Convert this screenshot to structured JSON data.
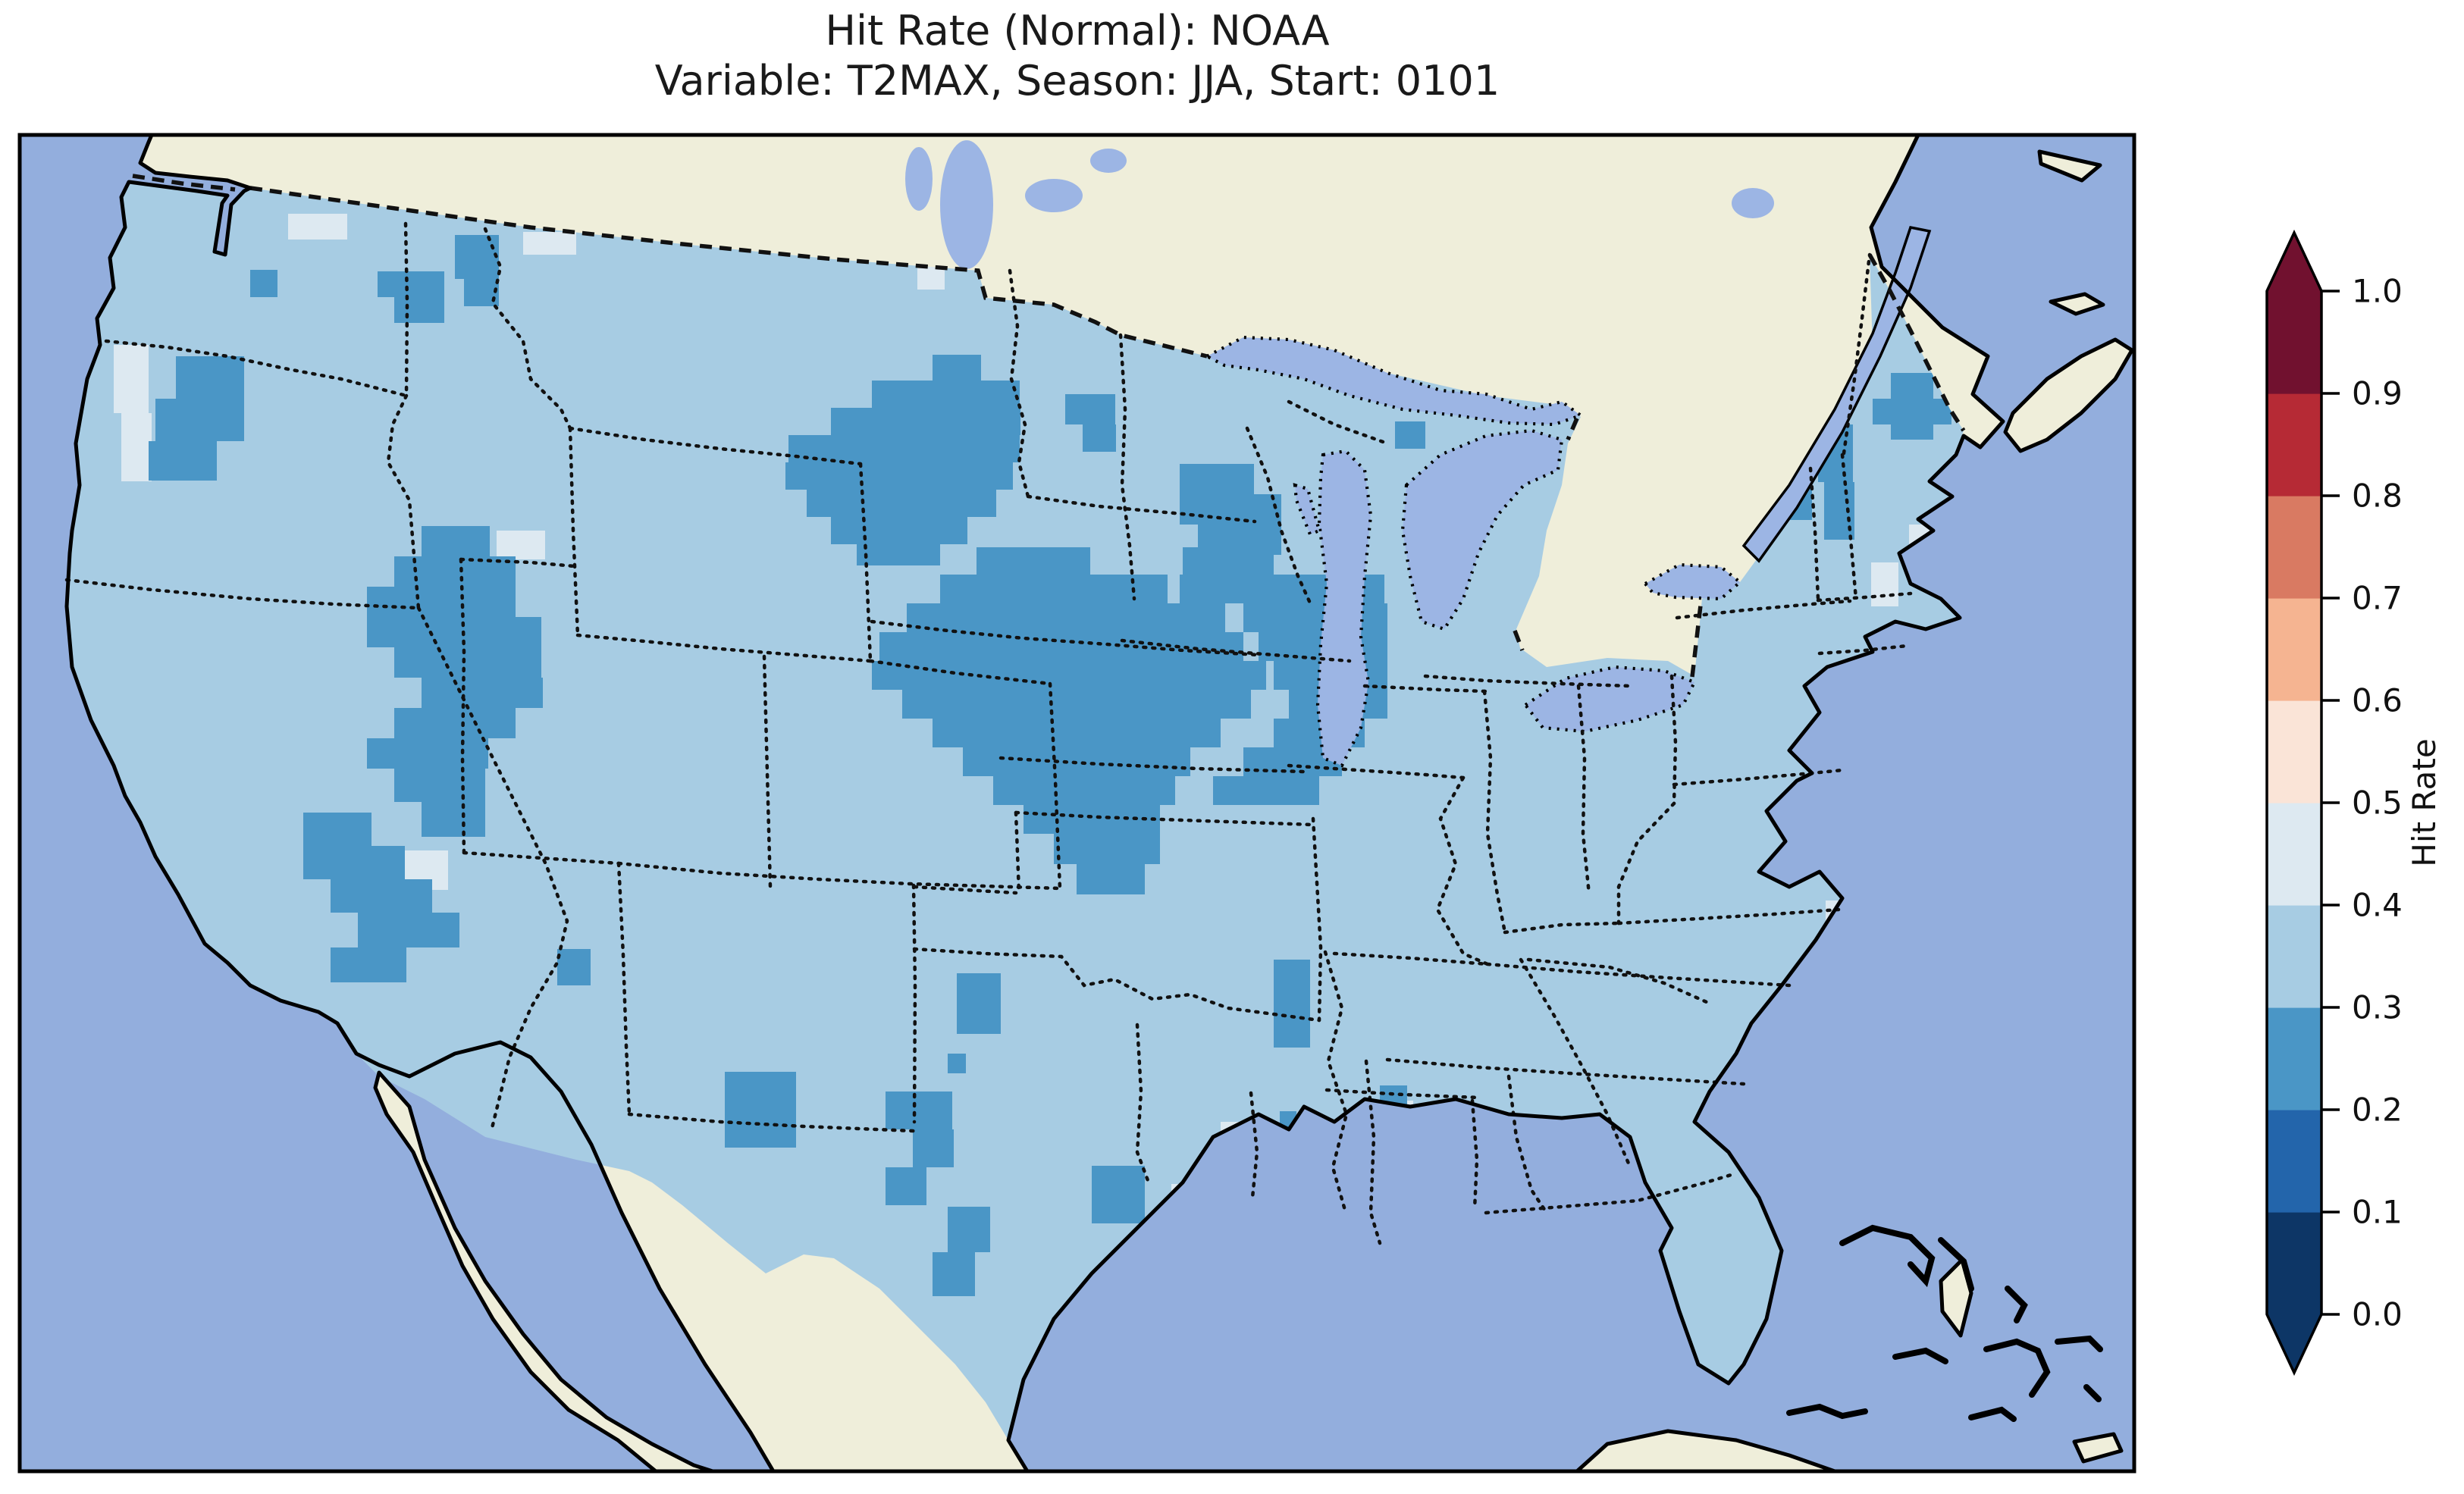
{
  "title": {
    "line1": "Hit Rate (Normal): NOAA",
    "line2": "Variable: T2MAX, Season: JJA, Start: 0101"
  },
  "colorbar": {
    "label": "Hit Rate",
    "tick_labels": [
      "0.0",
      "0.1",
      "0.2",
      "0.3",
      "0.4",
      "0.5",
      "0.6",
      "0.7",
      "0.8",
      "0.9",
      "1.0"
    ],
    "bins_bottom_to_top": [
      {
        "range": "0.0-0.1",
        "color": "#0d3666"
      },
      {
        "range": "0.1-0.2",
        "color": "#2365ab"
      },
      {
        "range": "0.2-0.3",
        "color": "#4a96c6"
      },
      {
        "range": "0.3-0.4",
        "color": "#a7cce3"
      },
      {
        "range": "0.4-0.5",
        "color": "#dde9f1"
      },
      {
        "range": "0.5-0.6",
        "color": "#fae4d7"
      },
      {
        "range": "0.6-0.7",
        "color": "#f5b491"
      },
      {
        "range": "0.7-0.8",
        "color": "#d97a62"
      },
      {
        "range": "0.8-0.9",
        "color": "#b62a35"
      },
      {
        "range": "0.9-1.0",
        "color": "#71112f"
      }
    ],
    "extend_under_color": "#0d3666",
    "extend_over_color": "#71112f",
    "outline_color": "#000000"
  },
  "map": {
    "colors": {
      "ocean": "#93aedd",
      "lakes": "#9cb5e4",
      "land": "#efeeda",
      "base_bin": "#a7cce3",
      "dark_bin": "#4a96c6",
      "pale_bin": "#dde9f1",
      "coastline": "#000000",
      "borders": "#111111",
      "frame": "#000000"
    }
  },
  "chart_data": {
    "type": "heatmap",
    "title": "Hit Rate (Normal): NOAA",
    "variable": "T2MAX",
    "season": "JJA",
    "start": "0101",
    "value_label": "Hit Rate",
    "value_range": [
      0.0,
      1.0
    ],
    "bin_edges": [
      0.0,
      0.1,
      0.2,
      0.3,
      0.4,
      0.5,
      0.6,
      0.7,
      0.8,
      0.9,
      1.0
    ],
    "palette_bottom_to_top": [
      "#0d3666",
      "#2365ab",
      "#4a96c6",
      "#a7cce3",
      "#dde9f1",
      "#fae4d7",
      "#f5b491",
      "#d97a62",
      "#b62a35",
      "#71112f"
    ],
    "base_us_bin": "0.3-0.4",
    "notes": "Most of CONUS falls in 0.3-0.4; clustered cells in 0.2-0.3 (darker blue); scattered coastal cells in 0.4-0.5 (pale).",
    "dark_cells_bin": "0.2-0.3",
    "dark_cells": [
      [
        330,
        356,
        36,
        36
      ],
      [
        498,
        358,
        88,
        34
      ],
      [
        520,
        392,
        66,
        34
      ],
      [
        600,
        310,
        58,
        58
      ],
      [
        612,
        368,
        46,
        36
      ],
      [
        232,
        470,
        90,
        56
      ],
      [
        205,
        526,
        117,
        56
      ],
      [
        196,
        582,
        90,
        52
      ],
      [
        1230,
        468,
        64,
        34
      ],
      [
        1150,
        502,
        195,
        36
      ],
      [
        1096,
        538,
        250,
        36
      ],
      [
        1040,
        574,
        305,
        36
      ],
      [
        1036,
        610,
        300,
        36
      ],
      [
        1064,
        646,
        250,
        36
      ],
      [
        1096,
        682,
        180,
        36
      ],
      [
        1130,
        718,
        110,
        28
      ],
      [
        1405,
        520,
        66,
        40
      ],
      [
        1428,
        560,
        44,
        36
      ],
      [
        1556,
        612,
        98,
        40
      ],
      [
        1556,
        652,
        134,
        40
      ],
      [
        1580,
        692,
        110,
        40
      ],
      [
        1600,
        732,
        70,
        36
      ],
      [
        1840,
        556,
        40,
        36
      ],
      [
        1858,
        700,
        36,
        40
      ],
      [
        1288,
        722,
        150,
        36
      ],
      [
        1560,
        722,
        120,
        36
      ],
      [
        1240,
        758,
        300,
        38
      ],
      [
        1556,
        758,
        270,
        38
      ],
      [
        1196,
        796,
        420,
        38
      ],
      [
        1640,
        796,
        190,
        38
      ],
      [
        1160,
        834,
        480,
        38
      ],
      [
        1660,
        834,
        170,
        38
      ],
      [
        1150,
        872,
        520,
        38
      ],
      [
        1680,
        872,
        150,
        38
      ],
      [
        1190,
        910,
        460,
        38
      ],
      [
        1700,
        910,
        130,
        38
      ],
      [
        1230,
        948,
        380,
        38
      ],
      [
        1680,
        948,
        120,
        38
      ],
      [
        1270,
        986,
        300,
        38
      ],
      [
        1640,
        986,
        130,
        38
      ],
      [
        1310,
        1024,
        240,
        38
      ],
      [
        1600,
        1024,
        140,
        38
      ],
      [
        1350,
        1062,
        180,
        38
      ],
      [
        1390,
        1100,
        140,
        40
      ],
      [
        1420,
        1140,
        90,
        40
      ],
      [
        1262,
        1284,
        58,
        80
      ],
      [
        556,
        694,
        90,
        40
      ],
      [
        520,
        734,
        160,
        40
      ],
      [
        484,
        774,
        196,
        40
      ],
      [
        484,
        814,
        230,
        40
      ],
      [
        520,
        854,
        194,
        40
      ],
      [
        556,
        894,
        160,
        40
      ],
      [
        520,
        934,
        160,
        40
      ],
      [
        484,
        974,
        160,
        40
      ],
      [
        520,
        1014,
        120,
        44
      ],
      [
        556,
        1058,
        84,
        46
      ],
      [
        400,
        1072,
        90,
        44
      ],
      [
        400,
        1116,
        134,
        44
      ],
      [
        436,
        1160,
        134,
        44
      ],
      [
        472,
        1204,
        134,
        46
      ],
      [
        436,
        1250,
        100,
        46
      ],
      [
        735,
        1252,
        44,
        48
      ],
      [
        956,
        1414,
        50,
        50
      ],
      [
        1006,
        1414,
        44,
        100
      ],
      [
        956,
        1464,
        50,
        50
      ],
      [
        1168,
        1440,
        88,
        50
      ],
      [
        1204,
        1490,
        54,
        50
      ],
      [
        1168,
        1540,
        54,
        50
      ],
      [
        1250,
        1592,
        56,
        60
      ],
      [
        1230,
        1652,
        56,
        58
      ],
      [
        1250,
        1390,
        24,
        26
      ],
      [
        1440,
        1538,
        70,
        76
      ],
      [
        1680,
        1266,
        48,
        60
      ],
      [
        1680,
        1326,
        48,
        56
      ],
      [
        1688,
        1466,
        22,
        22
      ],
      [
        1820,
        1432,
        36,
        34
      ],
      [
        2494,
        492,
        56,
        34
      ],
      [
        2470,
        526,
        104,
        34
      ],
      [
        2494,
        560,
        56,
        20
      ],
      [
        2300,
        588,
        90,
        50
      ],
      [
        2322,
        638,
        68,
        48
      ],
      [
        2398,
        560,
        46,
        76
      ],
      [
        2406,
        636,
        40,
        76
      ],
      [
        2204,
        588,
        50,
        72
      ]
    ],
    "pale_cells_bin": "0.4-0.5",
    "pale_cells": [
      [
        150,
        455,
        46,
        90
      ],
      [
        160,
        545,
        40,
        90
      ],
      [
        380,
        282,
        78,
        34
      ],
      [
        690,
        306,
        70,
        30
      ],
      [
        1210,
        352,
        36,
        30
      ],
      [
        505,
        1122,
        86,
        52
      ],
      [
        655,
        700,
        64,
        38
      ],
      [
        2120,
        1845,
        34,
        26
      ],
      [
        2163,
        1849,
        34,
        26
      ],
      [
        2206,
        1853,
        34,
        26
      ],
      [
        2352,
        1472,
        30,
        64
      ],
      [
        2408,
        1188,
        32,
        32
      ],
      [
        1545,
        1562,
        36,
        34
      ],
      [
        1610,
        1480,
        34,
        30
      ],
      [
        1830,
        1452,
        34,
        30
      ],
      [
        2468,
        742,
        36,
        58
      ],
      [
        2518,
        692,
        36,
        40
      ]
    ]
  }
}
